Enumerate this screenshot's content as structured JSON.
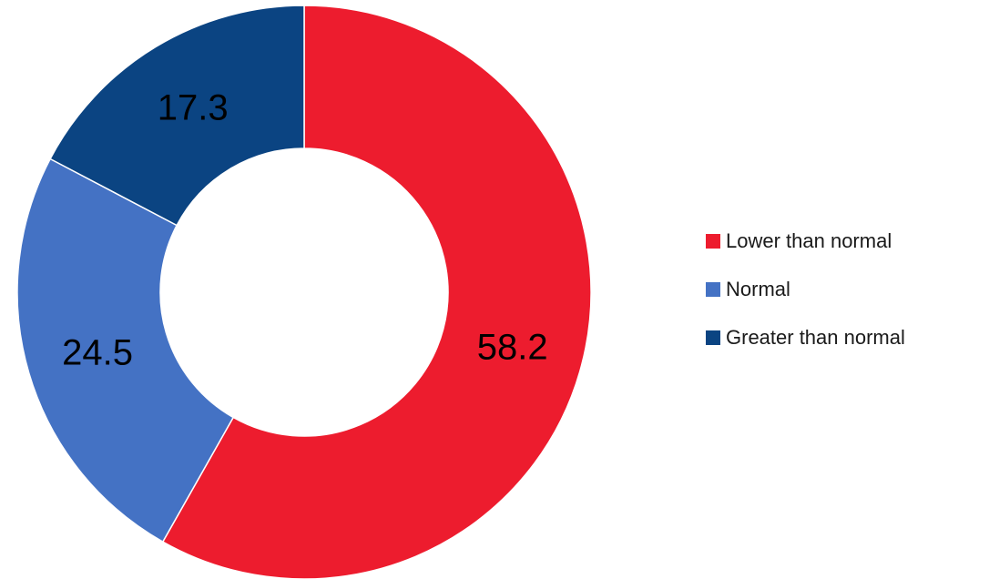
{
  "chart_data": {
    "type": "pie",
    "donut": true,
    "categories": [
      "Lower than normal",
      "Normal",
      "Greater than normal"
    ],
    "values": [
      58.2,
      24.5,
      17.3
    ],
    "value_labels": [
      "58.2",
      "24.5",
      "17.3"
    ],
    "colors": [
      "#ED1C2E",
      "#4472C4",
      "#0B4482"
    ],
    "start_angle_deg": 0,
    "direction": "clockwise",
    "legend_position": "right",
    "title": "",
    "xlabel": "",
    "ylabel": ""
  }
}
